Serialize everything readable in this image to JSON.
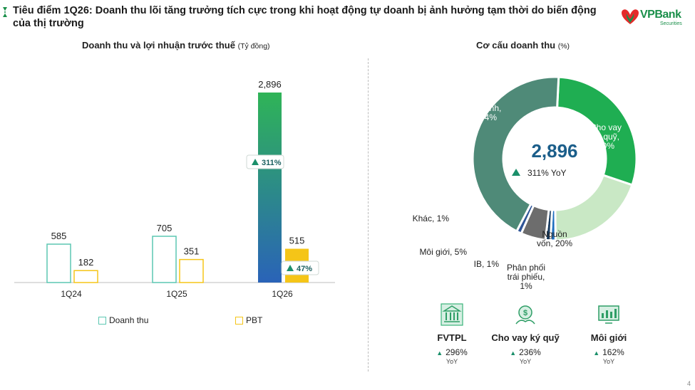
{
  "header": {
    "title": "Tiêu điểm 1Q26: Doanh thu lõi tăng trưởng tích cực trong khi hoạt động tự doanh bị ảnh hưởng tạm thời do biến động của thị trường",
    "logo_text": "VPBank",
    "logo_sub": "Securities"
  },
  "left_panel": {
    "title": "Doanh thu và lợi nhuận trước thuế",
    "unit": "(Tỷ đồng)"
  },
  "right_panel": {
    "title": "Cơ cấu doanh thu",
    "unit": "(%)"
  },
  "chart_data": [
    {
      "type": "bar",
      "categories": [
        "1Q24",
        "1Q25",
        "1Q26"
      ],
      "series": [
        {
          "name": "Doanh thu",
          "values": [
            585,
            705,
            2896
          ],
          "labels": [
            "585",
            "705",
            "2,896"
          ]
        },
        {
          "name": "PBT",
          "values": [
            182,
            351,
            515
          ],
          "labels": [
            "182",
            "351",
            "515"
          ]
        }
      ],
      "growth_badges": [
        {
          "category": "1Q26",
          "series": "Doanh thu",
          "label": "311%"
        },
        {
          "category": "1Q26",
          "series": "PBT",
          "label": "47%"
        }
      ],
      "legend": "bottom",
      "colors": {
        "outline": "#5cc7b2",
        "pbt_outline": "#f5c518",
        "gradient_top": "#2fb457",
        "gradient_bottom": "#2a63b8",
        "pbt_fill": "#f5c518"
      }
    },
    {
      "type": "pie",
      "center_value": "2,896",
      "center_growth": "311% YoY",
      "slices": [
        {
          "label": "Cho vay ký quỹ, 30%",
          "value": 30,
          "color": "#1fae52"
        },
        {
          "label": "Nguồn vốn, 20%",
          "value": 20,
          "color": "#c9e8c5"
        },
        {
          "label": "Phân phối trái phiếu, 1%",
          "value": 1,
          "color": "#1f6fbf"
        },
        {
          "label": "IB, 1%",
          "value": 1,
          "color": "#16395e"
        },
        {
          "label": "Môi giới, 5%",
          "value": 5,
          "color": "#6d6d6d"
        },
        {
          "label": "Khác, 1%",
          "value": 1,
          "color": "#2f5597"
        },
        {
          "label": "Đầu tư &Tự doanh, 44%",
          "value": 44,
          "color": "#4f8a78"
        }
      ]
    }
  ],
  "metrics": [
    {
      "name": "FVTPL",
      "value": "296%",
      "yoy": "YoY",
      "icon": "bank-building-icon"
    },
    {
      "name": "Cho vay ký quỹ",
      "value": "236%",
      "yoy": "YoY",
      "icon": "coin-growth-icon"
    },
    {
      "name": "Môi giới",
      "value": "162%",
      "yoy": "YoY",
      "icon": "trading-screen-icon"
    }
  ],
  "page_number": "4"
}
